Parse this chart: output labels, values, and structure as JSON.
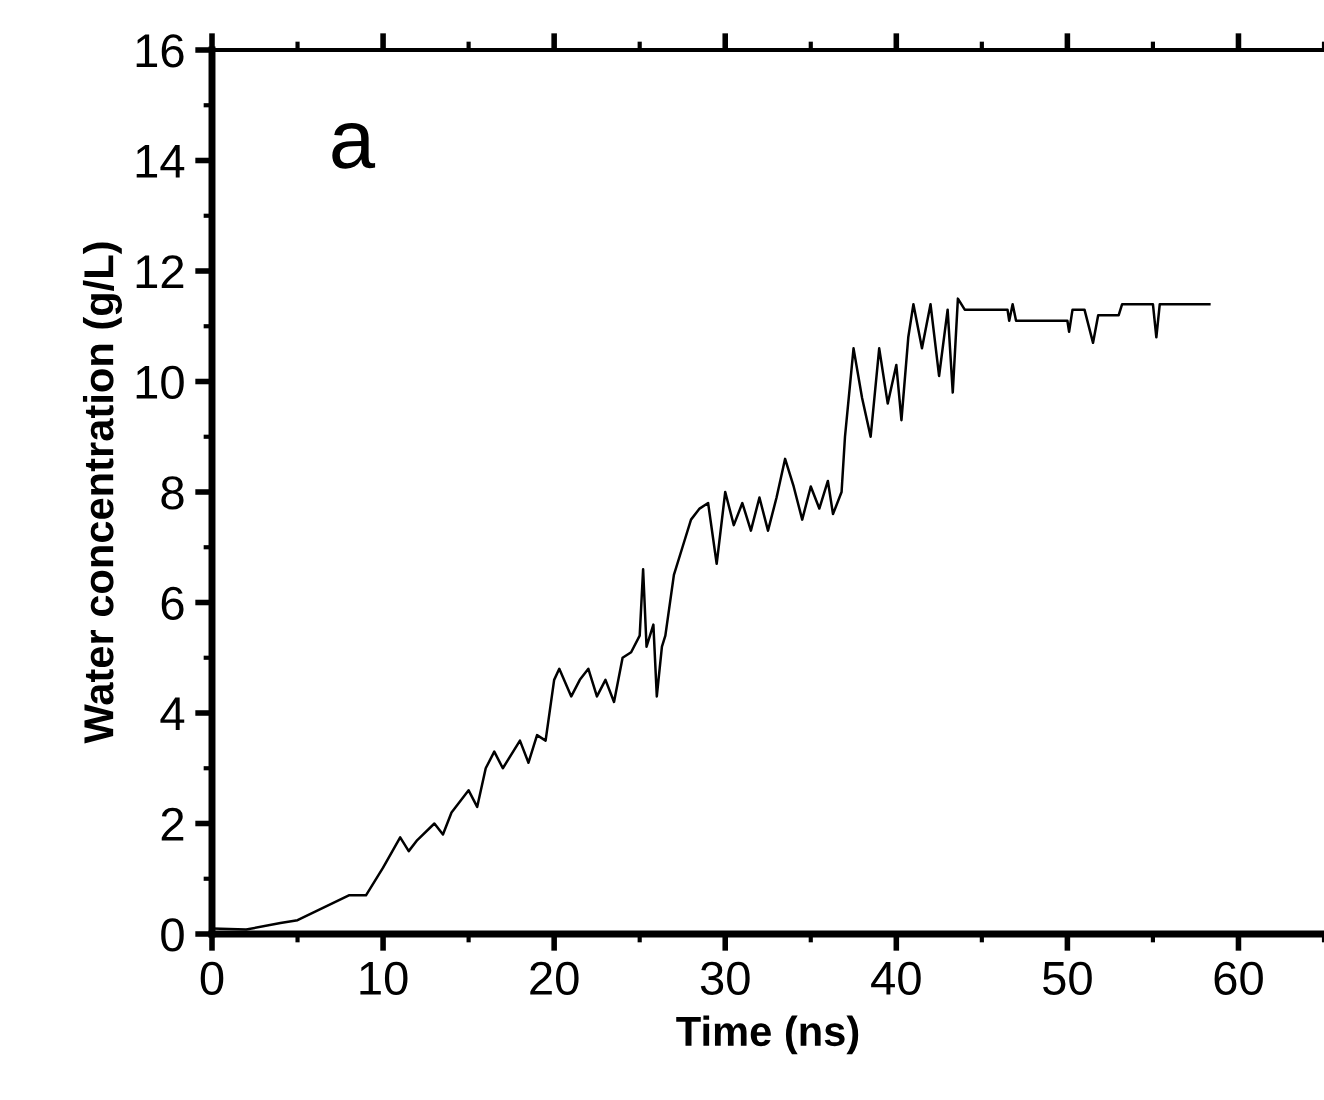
{
  "chart_data": {
    "type": "line",
    "xlabel": "Time (ns)",
    "ylabel": "Water concentration (g/L)",
    "annotations": [
      "a"
    ],
    "xlim": [
      0,
      65
    ],
    "xticks": [
      0,
      10,
      20,
      30,
      40,
      50,
      60
    ],
    "ylim": [
      0,
      16
    ],
    "yticks": [
      0,
      2,
      4,
      6,
      8,
      10,
      12,
      14,
      16
    ],
    "grid": false,
    "legend": false,
    "marker": "none",
    "line_style": "solid",
    "series": [
      {
        "color": "#000000",
        "x": [
          0,
          2,
          4,
          5,
          6,
          7,
          8,
          9,
          10,
          11,
          11.5,
          12,
          13,
          13.5,
          14,
          15,
          15.5,
          16,
          16.5,
          17,
          18,
          18.5,
          19,
          19.5,
          20,
          20.3,
          21,
          21.5,
          22,
          22.5,
          23,
          23.5,
          24,
          24.5,
          25,
          25.2,
          25.4,
          25.8,
          26,
          26.3,
          26.5,
          27,
          27.5,
          28,
          28.5,
          29,
          29.5,
          30,
          30.5,
          31,
          31.5,
          32,
          32.5,
          33,
          33.5,
          34,
          34.5,
          35,
          35.5,
          36,
          36.3,
          36.8,
          37,
          37.5,
          38,
          38.5,
          39,
          39.5,
          40,
          40.3,
          40.7,
          41,
          41.5,
          42,
          42.5,
          43,
          43.3,
          43.6,
          44,
          46.5,
          46.6,
          46.8,
          47,
          50,
          50.1,
          50.3,
          51,
          51.5,
          51.8,
          53,
          53.2,
          55,
          55.2,
          55.4,
          58.3
        ],
        "values": [
          0.1,
          0.08,
          0.2,
          0.25,
          0.4,
          0.55,
          0.7,
          0.7,
          1.2,
          1.75,
          1.5,
          1.7,
          2.0,
          1.8,
          2.2,
          2.6,
          2.3,
          3.0,
          3.3,
          3.0,
          3.5,
          3.1,
          3.6,
          3.5,
          4.6,
          4.8,
          4.3,
          4.6,
          4.8,
          4.3,
          4.6,
          4.2,
          5.0,
          5.1,
          5.4,
          6.6,
          5.2,
          5.6,
          4.3,
          5.2,
          5.4,
          6.5,
          7.0,
          7.5,
          7.7,
          7.8,
          6.7,
          8.0,
          7.4,
          7.8,
          7.3,
          7.9,
          7.3,
          7.9,
          8.6,
          8.1,
          7.5,
          8.1,
          7.7,
          8.2,
          7.6,
          8.0,
          9.0,
          10.6,
          9.7,
          9.0,
          10.6,
          9.6,
          10.3,
          9.3,
          10.8,
          11.4,
          10.6,
          11.4,
          10.1,
          11.3,
          9.8,
          11.5,
          11.3,
          11.3,
          11.1,
          11.4,
          11.1,
          11.1,
          10.9,
          11.3,
          11.3,
          10.7,
          11.2,
          11.2,
          11.4,
          11.4,
          10.8,
          11.4,
          11.4
        ]
      }
    ]
  }
}
